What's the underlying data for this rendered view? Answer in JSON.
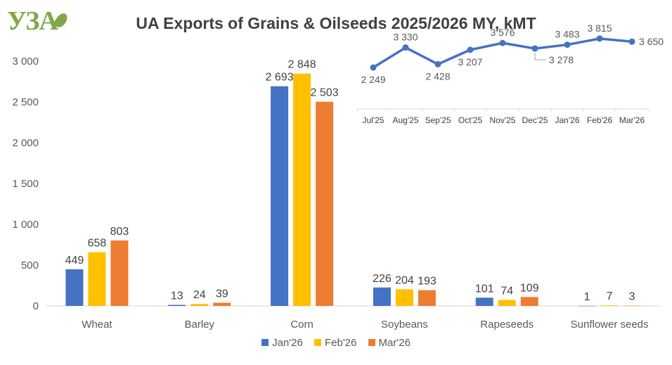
{
  "logo_text": "УЗА",
  "title": "UA Exports of Grains & Oilseeds 2025/2026 MY, kMT",
  "colors": {
    "jan": "#4472C4",
    "feb": "#FFC000",
    "mar": "#ED7D31",
    "line": "#4472C4",
    "axis": "#D9D9D9"
  },
  "chart_data": [
    {
      "type": "bar",
      "categories": [
        "Wheat",
        "Barley",
        "Corn",
        "Soybeans",
        "Rapeseeds",
        "Sunflower seeds"
      ],
      "series": [
        {
          "name": "Jan'26",
          "values": [
            449,
            13,
            2693,
            226,
            101,
            1
          ]
        },
        {
          "name": "Feb'26",
          "values": [
            658,
            24,
            2848,
            204,
            74,
            7
          ]
        },
        {
          "name": "Mar'26",
          "values": [
            803,
            39,
            2503,
            193,
            109,
            3
          ]
        }
      ],
      "data_labels": [
        [
          "449",
          "13",
          "2 693",
          "226",
          "101",
          "1"
        ],
        [
          "658",
          "24",
          "2 848",
          "204",
          "74",
          "7"
        ],
        [
          "803",
          "39",
          "2 503",
          "193",
          "109",
          "3"
        ]
      ],
      "ylim": [
        0,
        3000
      ],
      "yticks": [
        0,
        500,
        1000,
        1500,
        2000,
        2500,
        3000
      ],
      "ytick_labels": [
        "0",
        "500",
        "1 000",
        "1 500",
        "2 000",
        "2 500",
        "3 000"
      ],
      "legend": "bottom",
      "grid": false,
      "xlabel": "",
      "ylabel": ""
    },
    {
      "type": "line",
      "categories": [
        "Jul'25",
        "Aug'25",
        "Sep'25",
        "Oct'25",
        "Nov'25",
        "Dec'25",
        "Jan'26",
        "Feb'26",
        "Mar'26"
      ],
      "values": [
        2249,
        3330,
        2428,
        3207,
        3576,
        3278,
        3483,
        3815,
        3650
      ],
      "value_labels": [
        "2 249",
        "3 330",
        "2 428",
        "3 207",
        "3 576",
        "3 278",
        "3 483",
        "3 815",
        "3 650"
      ],
      "label_position": [
        "below",
        "above",
        "below",
        "below",
        "above",
        "callout",
        "above",
        "above",
        "right"
      ],
      "ylim": [
        0,
        4000
      ],
      "grid": false
    }
  ]
}
